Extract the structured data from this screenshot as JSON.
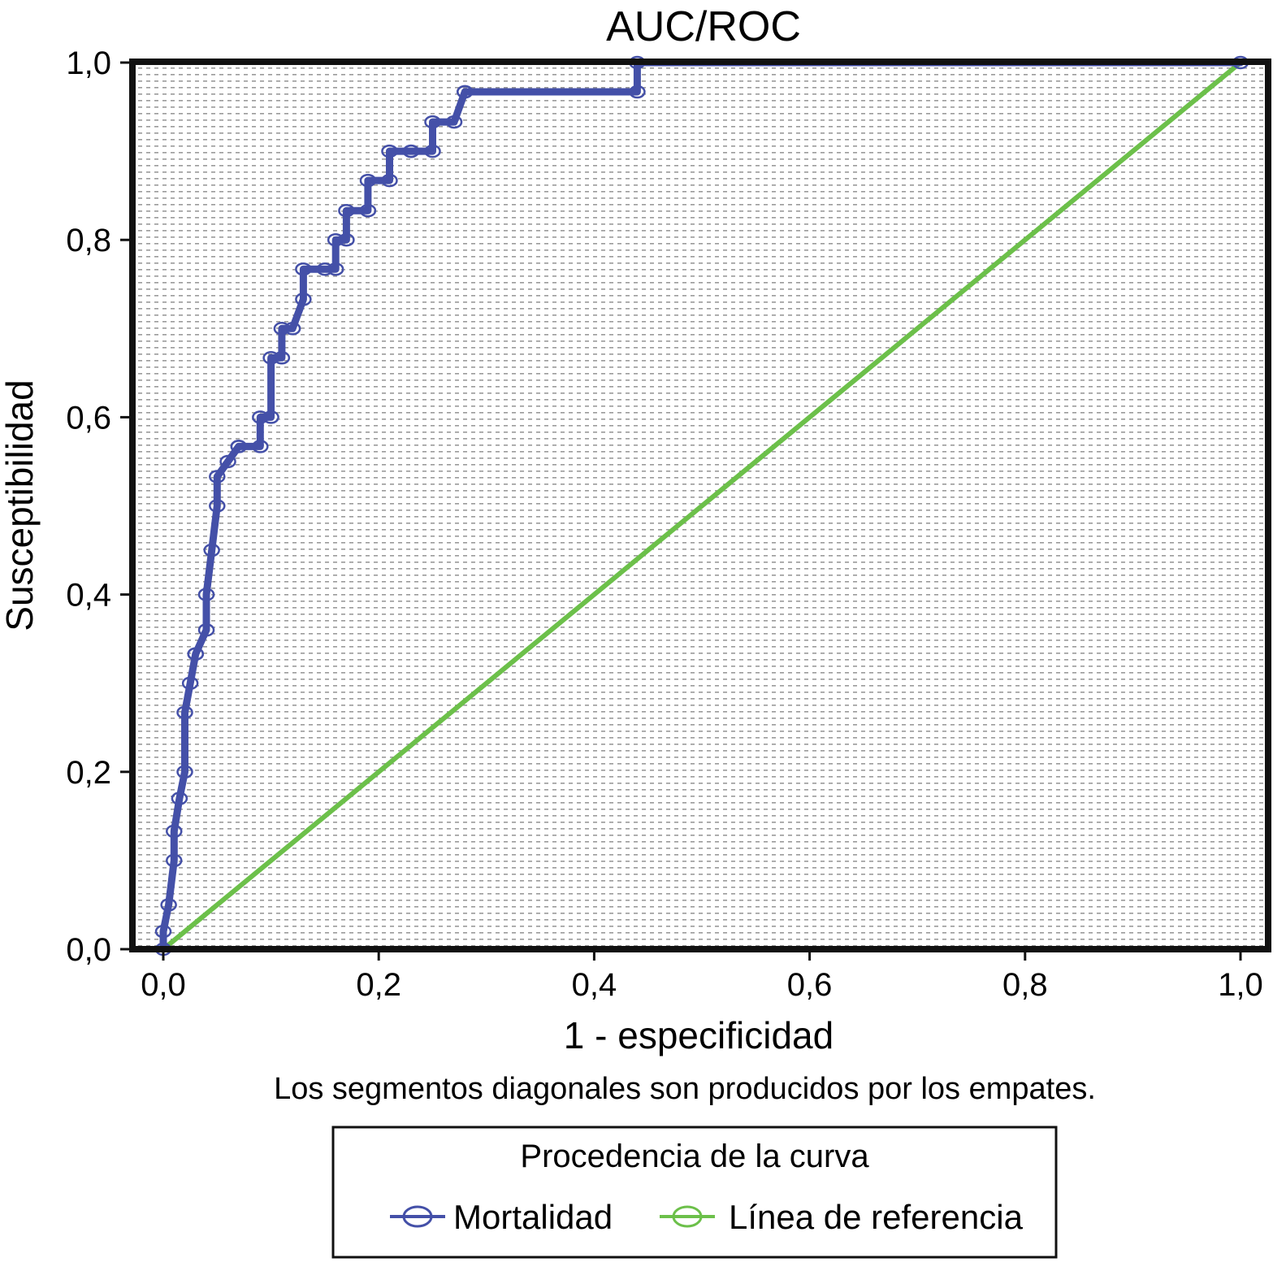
{
  "chart_data": {
    "type": "line",
    "title": "AUC/ROC",
    "xlabel": "1 - especificidad",
    "ylabel": "Susceptibilidad",
    "xlim": [
      0,
      1
    ],
    "ylim": [
      0,
      1
    ],
    "xticks": [
      "0,0",
      "0,2",
      "0,4",
      "0,6",
      "0,8",
      "1,0"
    ],
    "yticks": [
      "0,0",
      "0,2",
      "0,4",
      "0,6",
      "0,8",
      "1,0"
    ],
    "grid": "dotted background",
    "annotation": "Los segmentos diagonales son producidos por los empates.",
    "legend": {
      "title": "Procedencia de la curva",
      "position": "bottom",
      "items": [
        "Mortalidad",
        "Línea de referencia"
      ]
    },
    "series": [
      {
        "name": "Mortalidad",
        "color": "#4450a8",
        "x": [
          0.0,
          0.0,
          0.005,
          0.01,
          0.01,
          0.015,
          0.02,
          0.02,
          0.025,
          0.03,
          0.03,
          0.04,
          0.04,
          0.045,
          0.05,
          0.05,
          0.06,
          0.07,
          0.07,
          0.09,
          0.09,
          0.1,
          0.1,
          0.11,
          0.11,
          0.12,
          0.13,
          0.13,
          0.15,
          0.16,
          0.16,
          0.17,
          0.17,
          0.19,
          0.19,
          0.21,
          0.21,
          0.23,
          0.23,
          0.25,
          0.25,
          0.27,
          0.28,
          0.28,
          0.44,
          0.44,
          1.0
        ],
        "y": [
          0.0,
          0.02,
          0.05,
          0.1,
          0.133,
          0.17,
          0.2,
          0.267,
          0.3,
          0.333,
          0.333,
          0.36,
          0.4,
          0.45,
          0.5,
          0.533,
          0.55,
          0.567,
          0.567,
          0.567,
          0.6,
          0.6,
          0.667,
          0.667,
          0.7,
          0.7,
          0.733,
          0.767,
          0.767,
          0.767,
          0.8,
          0.8,
          0.833,
          0.833,
          0.867,
          0.867,
          0.9,
          0.9,
          0.9,
          0.9,
          0.933,
          0.933,
          0.967,
          0.967,
          0.967,
          1.0,
          1.0
        ]
      },
      {
        "name": "Línea de referencia",
        "color": "#6cc04a",
        "x": [
          0.0,
          1.0
        ],
        "y": [
          0.0,
          1.0
        ]
      }
    ]
  }
}
